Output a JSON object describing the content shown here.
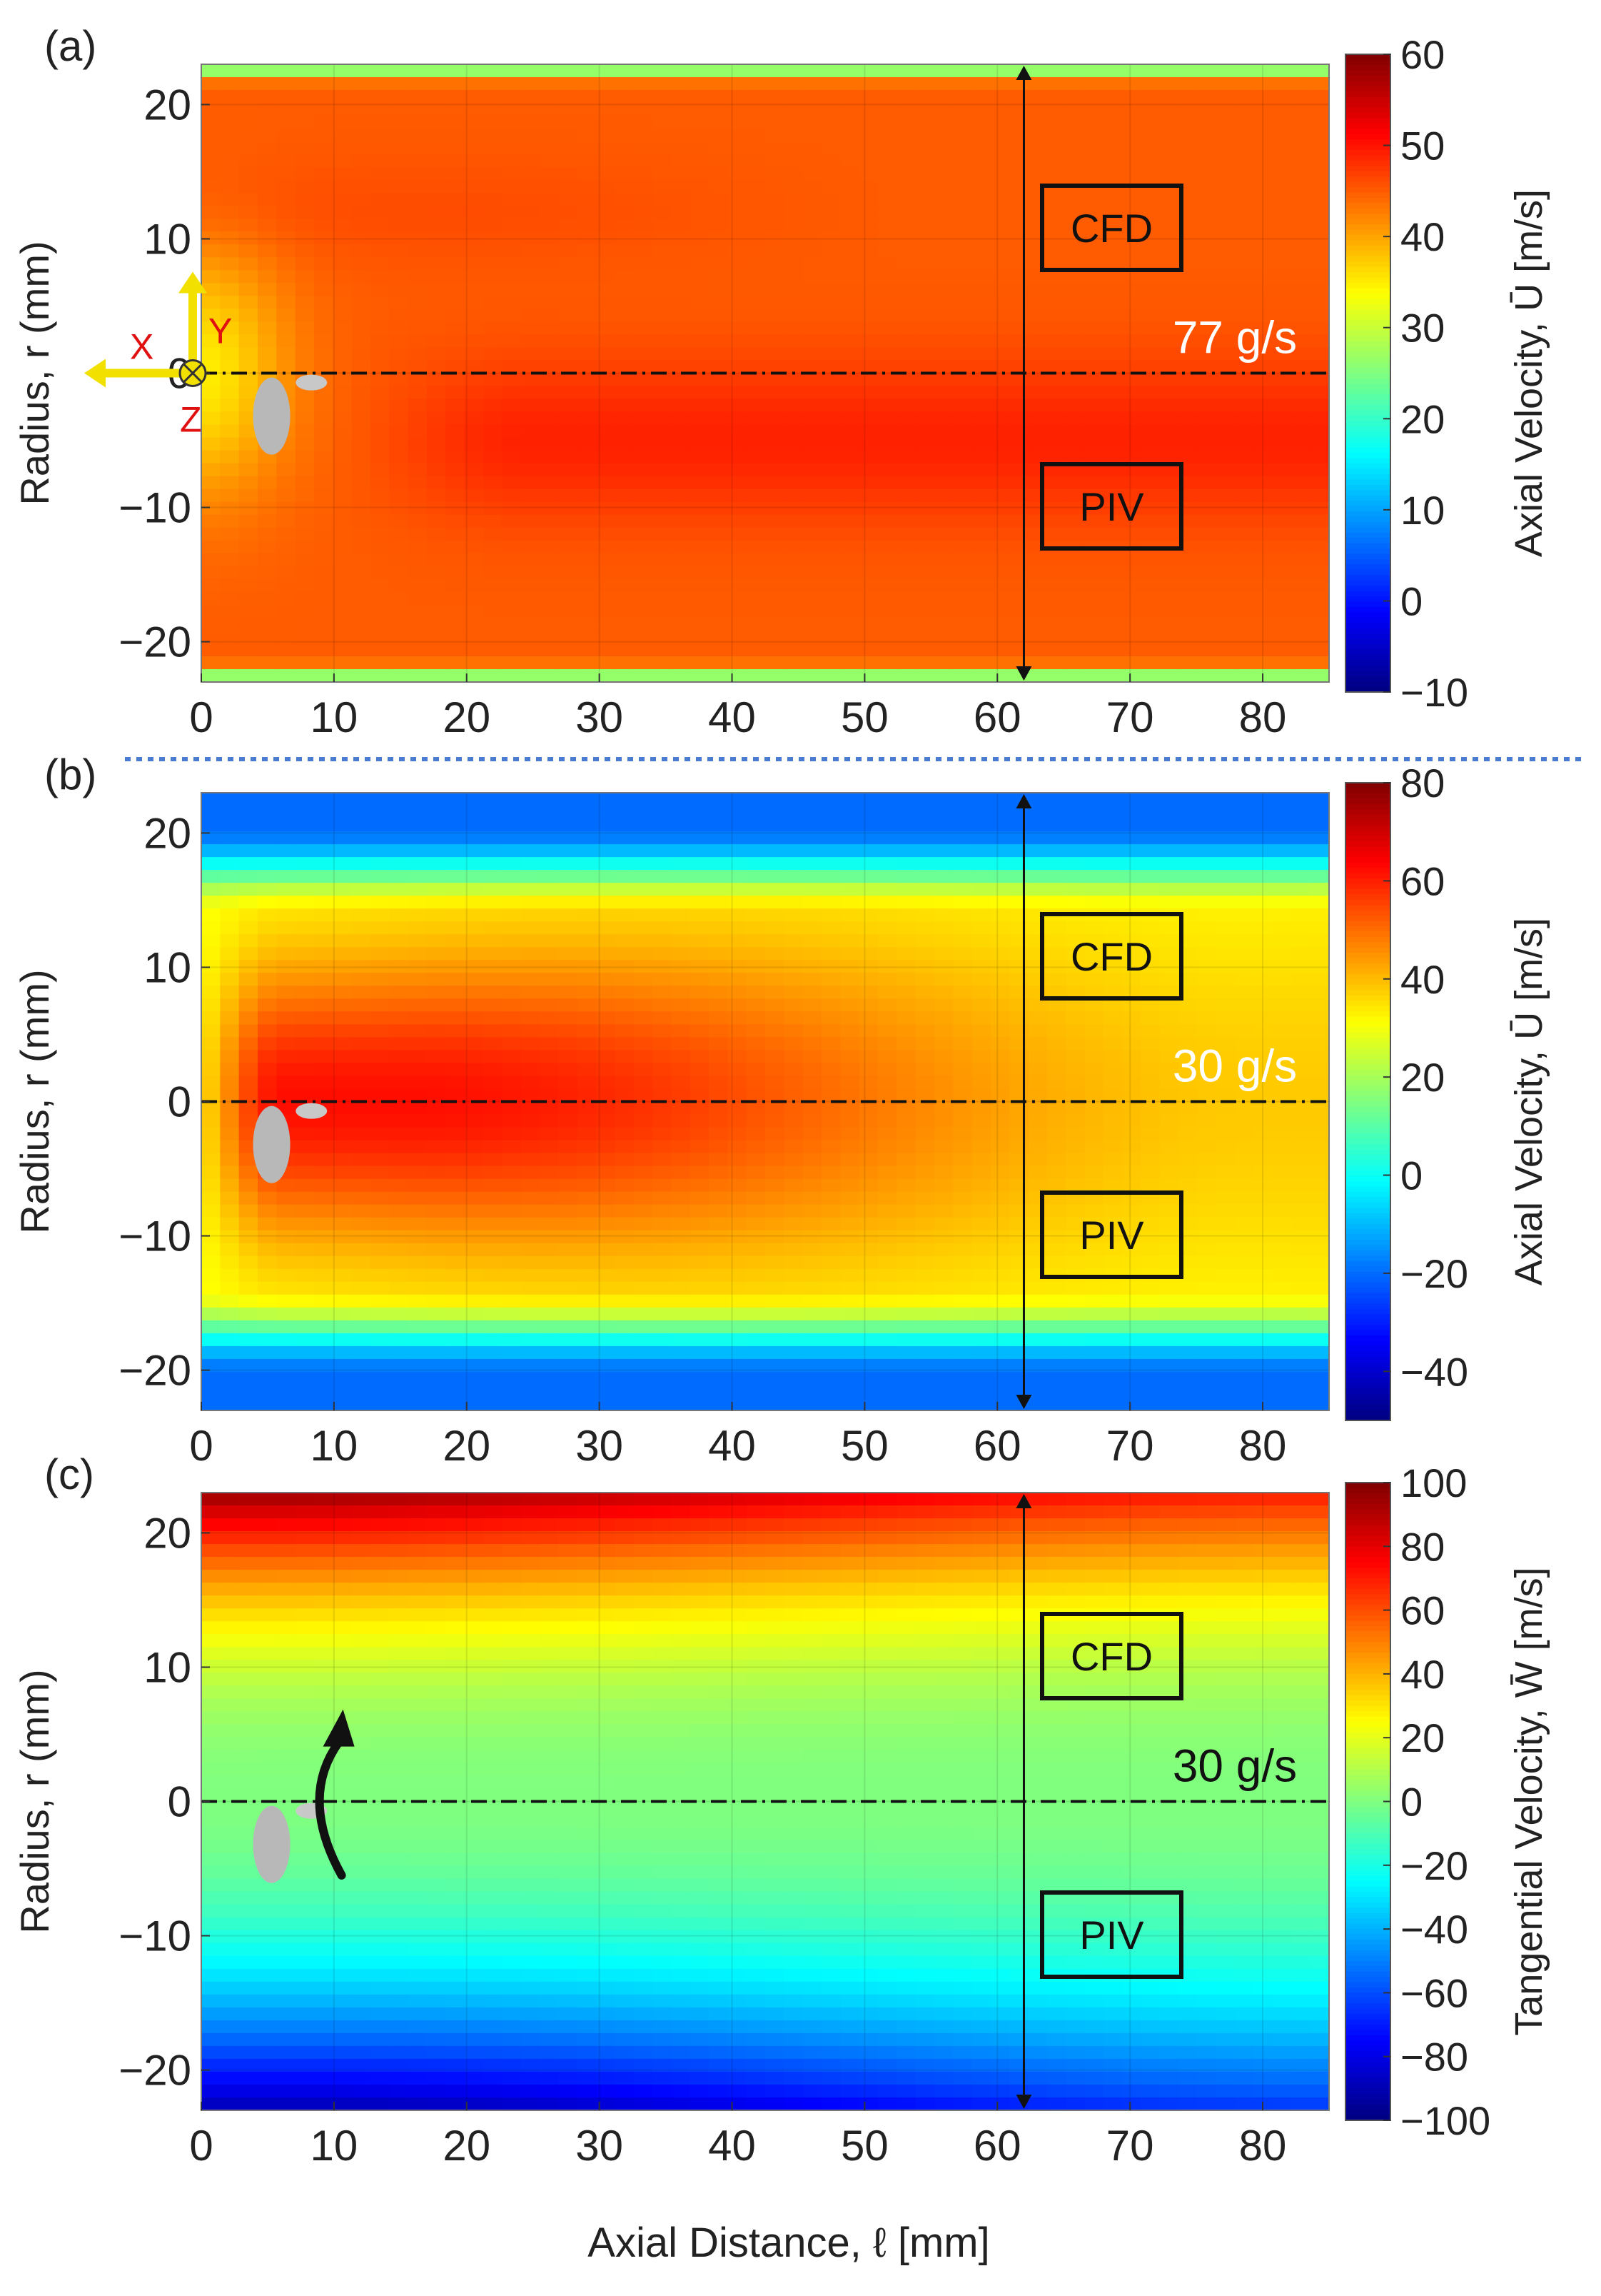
{
  "figure": {
    "xlabel": "Axial Distance, ℓ [mm]",
    "ylabel": "Radius, r (mm)",
    "separator_color": "#4a7bd0"
  },
  "chart_data": [
    {
      "panel": "(a)",
      "type": "heatmap",
      "quantity": "axial",
      "flow_label": "77 g/s",
      "flow_label_color": "#ffffff",
      "region_labels": [
        "CFD",
        "PIV"
      ],
      "xlim": [
        0,
        85
      ],
      "ylim": [
        -23,
        23
      ],
      "xticks": [
        0,
        10,
        20,
        30,
        40,
        50,
        60,
        70,
        80
      ],
      "yticks": [
        20,
        10,
        0,
        -10,
        -20
      ],
      "ytick_labels": [
        "20",
        "10",
        "0",
        "−10",
        "−20"
      ],
      "interface_x": 62,
      "colorbar": {
        "label": "Axial Velocity, Ū [m/s]",
        "range": [
          -10,
          60
        ],
        "ticks": [
          60,
          50,
          40,
          30,
          20,
          10,
          0,
          -10
        ],
        "tick_labels": [
          "60",
          "50",
          "40",
          "30",
          "20",
          "10",
          "0",
          "−10"
        ],
        "colormap": "jet"
      },
      "axis_icons": {
        "x": "X",
        "y": "Y",
        "z": "Z"
      },
      "profile": {
        "wall_edge": 22,
        "core": 45,
        "near_center": 49,
        "center": 46
      }
    },
    {
      "panel": "(b)",
      "type": "heatmap",
      "quantity": "axial",
      "flow_label": "30 g/s",
      "flow_label_color": "#ffffff",
      "region_labels": [
        "CFD",
        "PIV"
      ],
      "xlim": [
        0,
        85
      ],
      "ylim": [
        -23,
        23
      ],
      "xticks": [
        0,
        10,
        20,
        30,
        40,
        50,
        60,
        70,
        80
      ],
      "yticks": [
        20,
        10,
        0,
        -10,
        -20
      ],
      "ytick_labels": [
        "20",
        "10",
        "0",
        "−10",
        "−20"
      ],
      "interface_x": 62,
      "colorbar": {
        "label": "Axial Velocity, Ū [m/s]",
        "range": [
          -50,
          80
        ],
        "ticks": [
          80,
          60,
          40,
          20,
          0,
          -20,
          -40
        ],
        "tick_labels": [
          "80",
          "60",
          "40",
          "20",
          "0",
          "−20",
          "−40"
        ],
        "colormap": "jet"
      },
      "profile": {
        "wall": -20,
        "mid": 30,
        "core_peak": 62,
        "core_end": 38
      }
    },
    {
      "panel": "(c)",
      "type": "heatmap",
      "quantity": "tangential",
      "flow_label": "30 g/s",
      "flow_label_color": "#111111",
      "region_labels": [
        "CFD",
        "PIV"
      ],
      "xlim": [
        0,
        85
      ],
      "ylim": [
        -23,
        23
      ],
      "xticks": [
        0,
        10,
        20,
        30,
        40,
        50,
        60,
        70,
        80
      ],
      "xtick_labels": [
        "0",
        "10",
        "20",
        "30",
        "40",
        "50",
        "60",
        "70",
        "80"
      ],
      "yticks": [
        20,
        10,
        0,
        -10,
        -20
      ],
      "ytick_labels": [
        "20",
        "10",
        "0",
        "−10",
        "−20"
      ],
      "interface_x": 62,
      "colorbar": {
        "label": "Tangential Velocity, W̄ [m/s]",
        "range": [
          -100,
          100
        ],
        "ticks": [
          100,
          80,
          60,
          40,
          20,
          0,
          -20,
          -40,
          -60,
          -80,
          -100
        ],
        "tick_labels": [
          "100",
          "80",
          "60",
          "40",
          "20",
          "0",
          "−20",
          "−40",
          "−60",
          "−80",
          "−100"
        ],
        "colormap": "jet"
      },
      "profile": {
        "top_wall": 95,
        "bottom_wall": -90
      }
    }
  ]
}
